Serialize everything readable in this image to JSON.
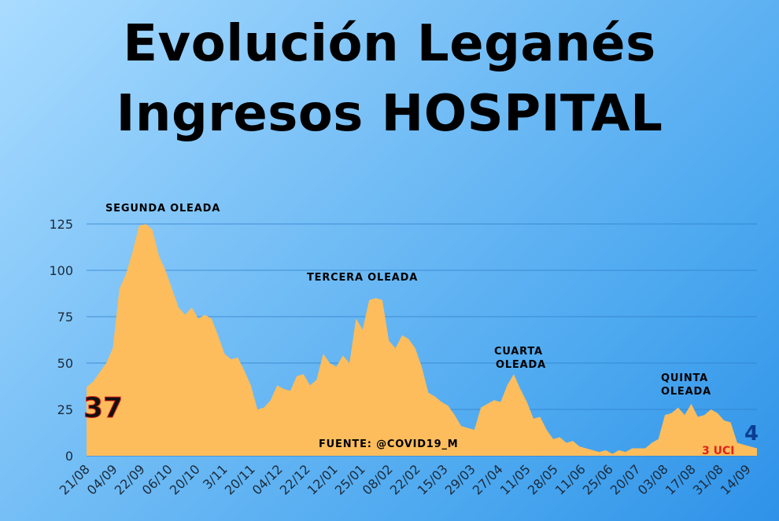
{
  "title_line1": "Evolución Leganés",
  "title_line2": "Ingresos HOSPITAL",
  "chart_data": {
    "type": "area",
    "title": "Evolución Leganés Ingresos HOSPITAL",
    "xlabel": "",
    "ylabel": "",
    "ylim": [
      0,
      125
    ],
    "yticks": [
      0,
      25,
      50,
      75,
      100,
      125
    ],
    "grid": true,
    "fill_color": "#fdbd5c",
    "x_tick_labels": [
      "21/08",
      "04/09",
      "22/09",
      "06/10",
      "20/10",
      "3/11",
      "20/11",
      "04/12",
      "22/12",
      "12/01",
      "25/01",
      "08/02",
      "22/02",
      "15/03",
      "29/03",
      "27/04",
      "11/05",
      "28/05",
      "11/06",
      "25/06",
      "20/07",
      "03/08",
      "17/08",
      "31/08",
      "14/09"
    ],
    "values": [
      37,
      40,
      45,
      50,
      58,
      90,
      98,
      110,
      124,
      125,
      122,
      108,
      100,
      90,
      80,
      76,
      80,
      74,
      76,
      74,
      65,
      55,
      52,
      53,
      46,
      38,
      25,
      26,
      30,
      38,
      36,
      35,
      43,
      44,
      38,
      41,
      55,
      50,
      48,
      54,
      50,
      74,
      68,
      84,
      85,
      84,
      62,
      58,
      65,
      63,
      58,
      48,
      34,
      32,
      29,
      27,
      22,
      16,
      15,
      14,
      26,
      28,
      30,
      29,
      38,
      44,
      36,
      29,
      20,
      21,
      14,
      9,
      10,
      7,
      8,
      5,
      4,
      3,
      2,
      3,
      1,
      3,
      2,
      4,
      4,
      4,
      7,
      9,
      22,
      23,
      26,
      22,
      28,
      21,
      22,
      25,
      23,
      19,
      18,
      7,
      6,
      5,
      4
    ],
    "annotations": [
      {
        "label": "SEGUNDA OLEADA"
      },
      {
        "label": "TERCERA OLEADA"
      },
      {
        "label": "CUARTA OLEADA",
        "lines": [
          "CUARTA",
          "OLEADA"
        ]
      },
      {
        "label": "QUINTA OLEADA",
        "lines": [
          "QUINTA",
          "OLEADA"
        ]
      },
      {
        "label": "FUENTE: @COVID19_M"
      }
    ],
    "start_value_label": "37",
    "end_value_label": "4",
    "end_uci_label": "3 UCI"
  },
  "colors": {
    "fill": "#fdbd5c",
    "grid": "#2f7fc9",
    "start_label": "#111111",
    "end_label": "#0b3d91",
    "uci_label": "#e0231c"
  }
}
